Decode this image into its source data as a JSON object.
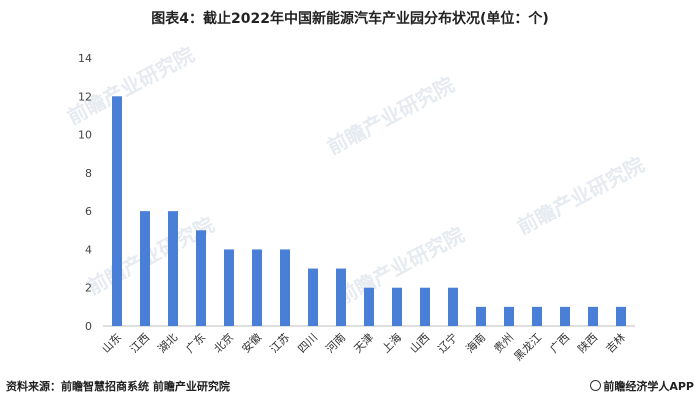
{
  "title": "图表4：截止2022年中国新能源汽车产业园分布状况(单位：个)",
  "source": "资料来源：前瞻智慧招商系统 前瞻产业研究院",
  "brand": "前瞻经济学人APP",
  "watermark_text": "前瞻产业研究院",
  "bar_color": "#4a7fd8",
  "chart_data": {
    "type": "bar",
    "title": "图表4：截止2022年中国新能源汽车产业园分布状况(单位：个)",
    "categories": [
      "山东",
      "江西",
      "湖北",
      "广东",
      "北京",
      "安徽",
      "江苏",
      "四川",
      "河南",
      "天津",
      "上海",
      "山西",
      "辽宁",
      "海南",
      "贵州",
      "黑龙江",
      "广西",
      "陕西",
      "吉林"
    ],
    "values": [
      12,
      6,
      6,
      5,
      4,
      4,
      4,
      3,
      3,
      2,
      2,
      2,
      2,
      1,
      1,
      1,
      1,
      1,
      1
    ],
    "yticks": [
      0,
      2,
      4,
      6,
      8,
      10,
      12,
      14
    ],
    "ylim": [
      0,
      14
    ],
    "xlabel": "",
    "ylabel": "",
    "grid": false,
    "legend": "none"
  }
}
